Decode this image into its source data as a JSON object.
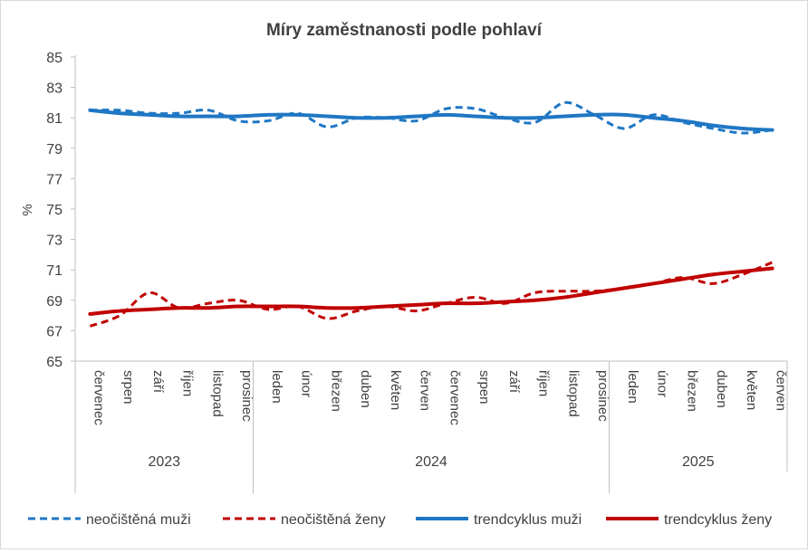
{
  "chart_data": {
    "type": "line",
    "title": "Míry zaměstnanosti podle pohlaví",
    "ylabel": "%",
    "xlabel": "",
    "ylim": [
      65,
      85
    ],
    "yticks": [
      65,
      67,
      69,
      71,
      73,
      75,
      77,
      79,
      81,
      83,
      85
    ],
    "grid": false,
    "legend_position": "bottom",
    "categories": [
      "červenec",
      "srpen",
      "září",
      "říjen",
      "listopad",
      "prosinec",
      "leden",
      "únor",
      "březen",
      "duben",
      "květen",
      "červen",
      "červenec",
      "srpen",
      "září",
      "říjen",
      "listopad",
      "prosinec",
      "leden",
      "únor",
      "březen",
      "duben",
      "květen",
      "červen"
    ],
    "years": [
      {
        "label": "2023",
        "from": 0,
        "to": 5
      },
      {
        "label": "2024",
        "from": 6,
        "to": 17
      },
      {
        "label": "2025",
        "from": 18,
        "to": 23
      }
    ],
    "series": [
      {
        "name": "neočištěná muži",
        "color": "#1f77c4",
        "style": "dashed",
        "values": [
          81.5,
          81.5,
          81.3,
          81.3,
          81.5,
          80.8,
          80.8,
          81.3,
          80.4,
          81.0,
          81.0,
          80.8,
          81.6,
          81.6,
          81.0,
          80.7,
          82.0,
          81.2,
          80.3,
          81.2,
          80.7,
          80.3,
          80.0,
          80.2
        ]
      },
      {
        "name": "neočištěná ženy",
        "color": "#c00000",
        "style": "dashed",
        "values": [
          67.3,
          68.0,
          69.5,
          68.5,
          68.8,
          69.0,
          68.4,
          68.6,
          67.8,
          68.3,
          68.6,
          68.3,
          68.8,
          69.2,
          68.8,
          69.5,
          69.6,
          69.6,
          69.8,
          70.1,
          70.5,
          70.1,
          70.7,
          71.5
        ]
      },
      {
        "name": "trendcyklus muži",
        "color": "#1f77c4",
        "style": "solid",
        "values": [
          81.5,
          81.3,
          81.2,
          81.1,
          81.1,
          81.1,
          81.2,
          81.2,
          81.1,
          81.0,
          81.0,
          81.1,
          81.2,
          81.1,
          81.0,
          81.0,
          81.1,
          81.2,
          81.2,
          81.0,
          80.8,
          80.5,
          80.3,
          80.2
        ]
      },
      {
        "name": "trendcyklus ženy",
        "color": "#c00000",
        "style": "solid",
        "values": [
          68.1,
          68.3,
          68.4,
          68.5,
          68.5,
          68.6,
          68.6,
          68.6,
          68.5,
          68.5,
          68.6,
          68.7,
          68.8,
          68.8,
          68.9,
          69.0,
          69.2,
          69.5,
          69.8,
          70.1,
          70.4,
          70.7,
          70.9,
          71.1
        ]
      }
    ]
  }
}
